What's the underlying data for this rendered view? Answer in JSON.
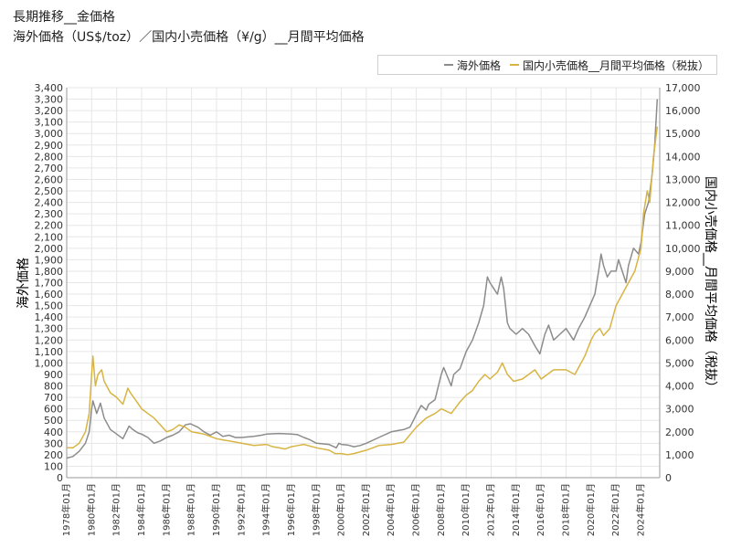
{
  "chart_data": {
    "type": "line",
    "title": "長期推移__金価格",
    "subtitle": "海外価格（US$/toz）／国内小売価格（¥/g）__月間平均価格",
    "ylabel_left": "海外価格",
    "ylabel_right": "国内小売価格__月間平均価格（税抜）",
    "xlim": [
      1978.0,
      2025.5
    ],
    "ylim_left": [
      0,
      3400
    ],
    "ylim_right": [
      0,
      17000
    ],
    "yticks_left": [
      0,
      100,
      200,
      300,
      400,
      500,
      600,
      700,
      800,
      900,
      1000,
      1100,
      1200,
      1300,
      1400,
      1500,
      1600,
      1700,
      1800,
      1900,
      2000,
      2100,
      2200,
      2300,
      2400,
      2500,
      2600,
      2700,
      2800,
      2900,
      3000,
      3100,
      3200,
      3300,
      3400
    ],
    "ytick_labels_left": [
      "0",
      "100",
      "200",
      "300",
      "400",
      "500",
      "600",
      "700",
      "800",
      "900",
      "1,000",
      "1,100",
      "1,200",
      "1,300",
      "1,400",
      "1,500",
      "1,600",
      "1,700",
      "1,800",
      "1,900",
      "2,000",
      "2,100",
      "2,200",
      "2,300",
      "2,400",
      "2,500",
      "2,600",
      "2,700",
      "2,800",
      "2,900",
      "3,000",
      "3,100",
      "3,200",
      "3,300",
      "3,400"
    ],
    "yticks_right": [
      0,
      1000,
      2000,
      3000,
      4000,
      5000,
      6000,
      7000,
      8000,
      9000,
      10000,
      11000,
      12000,
      13000,
      14000,
      15000,
      16000,
      17000
    ],
    "ytick_labels_right": [
      "0",
      "1,000",
      "2,000",
      "3,000",
      "4,000",
      "5,000",
      "6,000",
      "7,000",
      "8,000",
      "9,000",
      "10,000",
      "11,000",
      "12,000",
      "13,000",
      "14,000",
      "15,000",
      "16,000",
      "17,000"
    ],
    "xticks": [
      1978,
      1980,
      1982,
      1984,
      1986,
      1988,
      1990,
      1992,
      1994,
      1996,
      1998,
      2000,
      2002,
      2004,
      2006,
      2008,
      2010,
      2012,
      2014,
      2016,
      2018,
      2020,
      2022,
      2024
    ],
    "xtick_labels": [
      "1978年01月",
      "1980年01月",
      "1982年01月",
      "1984年01月",
      "1986年01月",
      "1988年01月",
      "1990年01月",
      "1992年01月",
      "1994年01月",
      "1996年01月",
      "1998年01月",
      "2000年01月",
      "2002年01月",
      "2004年01月",
      "2006年01月",
      "2008年01月",
      "2010年01月",
      "2012年01月",
      "2014年01月",
      "2016年01月",
      "2018年01月",
      "2020年01月",
      "2022年01月",
      "2024年01月"
    ],
    "grid": true,
    "legend_position": "top-right",
    "series": [
      {
        "name": "海外価格",
        "axis": "left",
        "color": "#8c8c8c",
        "x": [
          1978.0,
          1978.5,
          1979.0,
          1979.5,
          1979.8,
          1980.0,
          1980.1,
          1980.4,
          1980.7,
          1981.0,
          1981.5,
          1982.0,
          1982.5,
          1983.0,
          1983.3,
          1983.7,
          1984.0,
          1984.5,
          1985.0,
          1985.5,
          1986.0,
          1986.5,
          1987.0,
          1987.5,
          1987.9,
          1988.5,
          1989.0,
          1989.5,
          1990.0,
          1990.5,
          1991.0,
          1991.5,
          1992.0,
          1993.0,
          1993.6,
          1994.0,
          1995.0,
          1996.0,
          1996.5,
          1997.0,
          1997.5,
          1998.0,
          1999.0,
          1999.6,
          1999.8,
          2000.0,
          2000.5,
          2001.0,
          2001.5,
          2002.0,
          2003.0,
          2004.0,
          2005.0,
          2005.5,
          2006.0,
          2006.4,
          2006.8,
          2007.0,
          2007.5,
          2008.0,
          2008.2,
          2008.8,
          2009.0,
          2009.5,
          2010.0,
          2010.5,
          2011.0,
          2011.4,
          2011.7,
          2011.9,
          2012.2,
          2012.5,
          2012.8,
          2013.0,
          2013.3,
          2013.5,
          2014.0,
          2014.5,
          2015.0,
          2015.5,
          2015.9,
          2016.3,
          2016.6,
          2017.0,
          2017.5,
          2018.0,
          2018.6,
          2019.0,
          2019.5,
          2019.9,
          2020.3,
          2020.6,
          2020.8,
          2021.0,
          2021.3,
          2021.6,
          2022.0,
          2022.2,
          2022.8,
          2023.0,
          2023.4,
          2023.8,
          2024.0,
          2024.3,
          2024.6,
          2024.9,
          2025.1,
          2025.3
        ],
        "y": [
          170,
          185,
          230,
          300,
          400,
          600,
          670,
          560,
          650,
          520,
          420,
          380,
          340,
          450,
          420,
          390,
          380,
          350,
          300,
          320,
          350,
          370,
          400,
          460,
          470,
          440,
          400,
          370,
          400,
          360,
          370,
          350,
          350,
          360,
          370,
          380,
          385,
          380,
          375,
          350,
          330,
          300,
          290,
          260,
          300,
          290,
          285,
          270,
          280,
          300,
          350,
          400,
          420,
          440,
          550,
          630,
          590,
          640,
          680,
          900,
          960,
          800,
          900,
          950,
          1100,
          1200,
          1350,
          1500,
          1750,
          1700,
          1650,
          1600,
          1750,
          1650,
          1350,
          1300,
          1250,
          1300,
          1250,
          1150,
          1080,
          1250,
          1330,
          1200,
          1250,
          1300,
          1200,
          1300,
          1400,
          1500,
          1600,
          1800,
          1950,
          1850,
          1750,
          1800,
          1800,
          1900,
          1700,
          1850,
          2000,
          1950,
          2050,
          2300,
          2400,
          2650,
          2900,
          3300
        ]
      },
      {
        "name": "国内小売価格__月間平均価格（税抜）",
        "axis": "right",
        "color": "#d8b443",
        "x": [
          1978.0,
          1978.5,
          1979.0,
          1979.5,
          1979.8,
          1980.0,
          1980.1,
          1980.3,
          1980.5,
          1980.8,
          1981.0,
          1981.5,
          1982.0,
          1982.5,
          1982.9,
          1983.1,
          1983.5,
          1984.0,
          1984.5,
          1985.0,
          1985.5,
          1986.0,
          1986.5,
          1987.0,
          1987.5,
          1988.0,
          1988.5,
          1989.0,
          1989.5,
          1990.0,
          1990.5,
          1991.0,
          1992.0,
          1993.0,
          1994.0,
          1994.5,
          1995.0,
          1995.5,
          1996.0,
          1996.5,
          1997.0,
          1998.0,
          1999.0,
          1999.5,
          2000.0,
          2000.5,
          2001.0,
          2002.0,
          2003.0,
          2004.0,
          2005.0,
          2006.0,
          2006.4,
          2006.8,
          2007.5,
          2008.0,
          2008.8,
          2009.5,
          2010.0,
          2010.5,
          2011.0,
          2011.5,
          2011.9,
          2012.5,
          2012.9,
          2013.3,
          2013.8,
          2014.5,
          2015.0,
          2015.5,
          2016.0,
          2016.5,
          2017.0,
          2018.0,
          2018.7,
          2019.0,
          2019.5,
          2020.0,
          2020.3,
          2020.7,
          2021.0,
          2021.5,
          2022.0,
          2022.5,
          2023.0,
          2023.5,
          2024.0,
          2024.2,
          2024.5,
          2024.7,
          2025.0,
          2025.3
        ],
        "y": [
          1300,
          1300,
          1500,
          2000,
          2800,
          4500,
          5300,
          4000,
          4500,
          4700,
          4200,
          3700,
          3500,
          3200,
          3900,
          3700,
          3400,
          3000,
          2800,
          2600,
          2300,
          2000,
          2100,
          2300,
          2200,
          2000,
          1950,
          1900,
          1800,
          1700,
          1650,
          1600,
          1500,
          1400,
          1450,
          1350,
          1300,
          1250,
          1350,
          1400,
          1450,
          1300,
          1200,
          1050,
          1050,
          1000,
          1050,
          1200,
          1400,
          1450,
          1550,
          2200,
          2400,
          2600,
          2800,
          3000,
          2800,
          3300,
          3600,
          3800,
          4200,
          4500,
          4300,
          4600,
          5000,
          4500,
          4200,
          4300,
          4500,
          4700,
          4300,
          4500,
          4700,
          4700,
          4500,
          4800,
          5300,
          6000,
          6300,
          6500,
          6200,
          6500,
          7500,
          8000,
          8500,
          9000,
          10000,
          11500,
          12500,
          12000,
          14000,
          15300
        ]
      }
    ]
  }
}
